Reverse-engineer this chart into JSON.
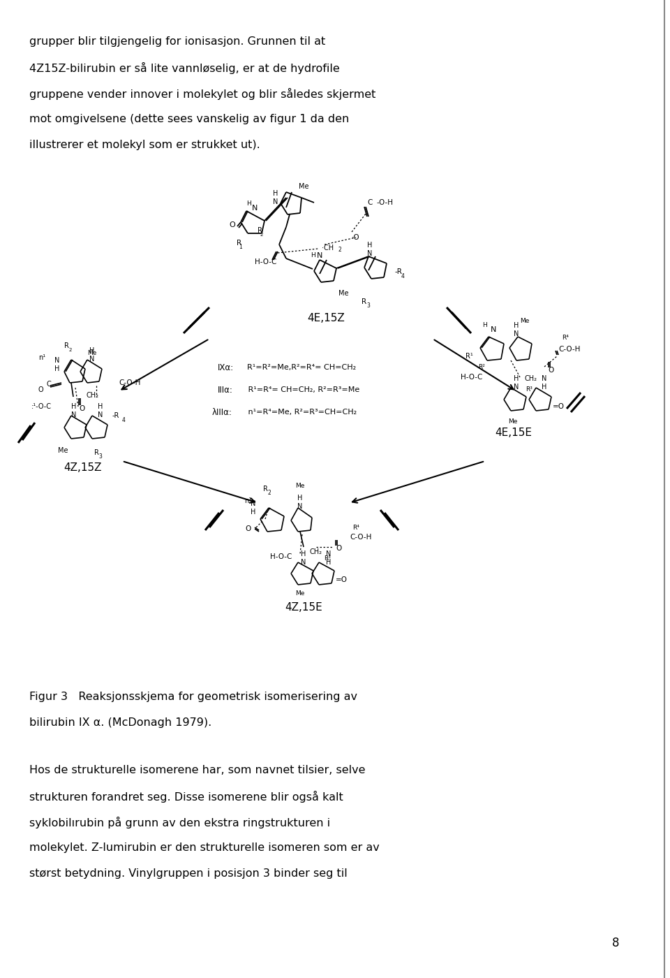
{
  "background_color": "#ffffff",
  "page_width": 9.6,
  "page_height": 14.0,
  "top_text": [
    "grupper blir tilgjengelig for ionisasjon. Grunnen til at",
    "4Z15Z-bilirubin er så lite vannløselig, er at de hydrofile",
    "gruppene vender innover i molekylet og blir således skjermet",
    "mot omgivelsene (dette sees vanskelig av figur 1 da den",
    "illustrerer et molekyl som er strukket ut)."
  ],
  "figure_caption": [
    "Figur 3   Reaksjonsskjema for geometrisk isomerisering av",
    "bilirubin IX α. (McDonagh 1979)."
  ],
  "bottom_text": [
    "Hos de strukturelle isomerene har, som navnet tilsier, selve",
    "strukturen forandret seg. Disse isomerene blir også kalt",
    "syklobilırubin på grunn av den ekstra ringstrukturen i",
    "molekylet. Z-lumirubin er den strukturelle isomeren som er av",
    "størst betydning. Vinylgruppen i posisjon 3 binder seg til"
  ],
  "page_number": "8"
}
